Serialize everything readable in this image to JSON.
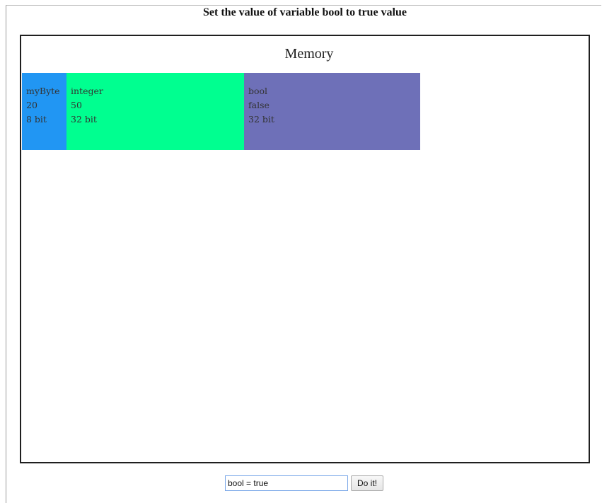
{
  "instruction": "Set the value of variable bool to true value",
  "memory": {
    "title": "Memory",
    "cells": [
      {
        "name": "myByte",
        "value": "20",
        "size": "8 bit",
        "color": "#2196f3"
      },
      {
        "name": "integer",
        "value": "50",
        "size": "32 bit",
        "color": "#00ff90"
      },
      {
        "name": "bool",
        "value": "false",
        "size": "32 bit",
        "color": "#6e70b8"
      }
    ]
  },
  "controls": {
    "code_value": "bool = true",
    "button_label": "Do it!"
  }
}
